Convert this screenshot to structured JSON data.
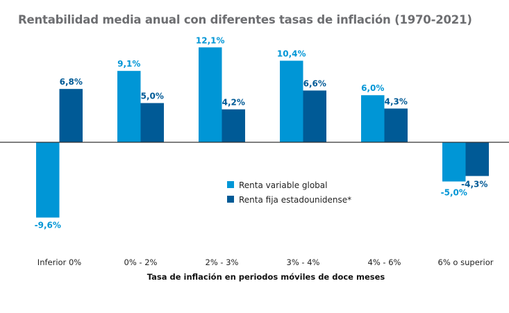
{
  "chart_data": {
    "type": "bar",
    "title": "Rentabilidad media anual con diferentes tasas de inflación (1970-2021)",
    "xlabel": "Tasa de inflación en periodos móviles de doce meses",
    "ylabel": "",
    "categories": [
      "Inferior 0%",
      "0% - 2%",
      "2% - 3%",
      "3% - 4%",
      "4% - 6%",
      "6% o superior"
    ],
    "series": [
      {
        "name": "Renta variable global",
        "color": "#0096d6",
        "values": [
          -9.6,
          9.1,
          12.1,
          10.4,
          6.0,
          -5.0
        ],
        "labels": [
          "-9,6%",
          "9,1%",
          "12,1%",
          "10,4%",
          "6,0%",
          "-5,0%"
        ]
      },
      {
        "name": "Renta fija estadounidense*",
        "color": "#005a96",
        "values": [
          6.8,
          5.0,
          4.2,
          6.6,
          4.3,
          -4.3
        ],
        "labels": [
          "6,8%",
          "5,0%",
          "4,2%",
          "6,6%",
          "4,3%",
          "-4,3%"
        ]
      }
    ],
    "ylim": [
      -12,
      13
    ],
    "grid": false,
    "legend_position": "center"
  }
}
